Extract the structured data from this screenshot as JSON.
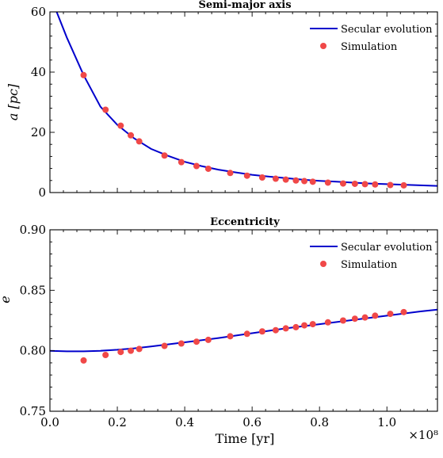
{
  "chart_data": [
    {
      "type": "line",
      "title": "Semi-major axis",
      "xlabel": "",
      "ylabel": "a [pc]",
      "xlim": [
        0,
        115000000.0
      ],
      "ylim": [
        0,
        60
      ],
      "yticks": [
        0,
        20,
        40,
        60
      ],
      "ytick_labels": [
        "0",
        "20",
        "40",
        "60"
      ],
      "xticks": [
        0,
        20000000.0,
        40000000.0,
        60000000.0,
        80000000.0,
        100000000.0
      ],
      "grid": false,
      "legend_position": "top-right",
      "colors": {
        "line": "#0000cc",
        "points": "#f04848"
      },
      "series": [
        {
          "name": "Secular evolution",
          "kind": "line",
          "x": [
            2000000.0,
            5000000.0,
            10000000.0,
            15000000.0,
            20000000.0,
            25000000.0,
            30000000.0,
            35000000.0,
            40000000.0,
            45000000.0,
            50000000.0,
            55000000.0,
            60000000.0,
            65000000.0,
            70000000.0,
            75000000.0,
            80000000.0,
            85000000.0,
            90000000.0,
            95000000.0,
            100000000.0,
            105000000.0,
            110000000.0,
            115000000.0
          ],
          "y": [
            60.0,
            51.5,
            39.0,
            28.5,
            22.5,
            18.0,
            14.5,
            12.2,
            10.2,
            8.8,
            7.6,
            6.7,
            5.9,
            5.3,
            4.8,
            4.3,
            3.9,
            3.6,
            3.3,
            3.0,
            2.8,
            2.6,
            2.4,
            2.2
          ]
        },
        {
          "name": "Simulation",
          "kind": "scatter",
          "x": [
            10000000.0,
            16500000.0,
            21000000.0,
            24000000.0,
            26500000.0,
            34000000.0,
            39000000.0,
            43500000.0,
            47000000.0,
            53500000.0,
            58500000.0,
            63000000.0,
            67000000.0,
            70000000.0,
            73000000.0,
            75500000.0,
            78000000.0,
            82500000.0,
            87000000.0,
            90500000.0,
            93500000.0,
            96500000.0,
            101000000.0,
            105000000.0
          ],
          "y": [
            39.0,
            27.5,
            22.2,
            19.0,
            17.0,
            12.3,
            10.1,
            8.8,
            7.9,
            6.5,
            5.6,
            5.0,
            4.6,
            4.3,
            4.0,
            3.8,
            3.6,
            3.3,
            3.0,
            2.9,
            2.8,
            2.7,
            2.5,
            2.4
          ]
        }
      ]
    },
    {
      "type": "line",
      "title": "Eccentricity",
      "xlabel": "Time [yr]",
      "ylabel": "e",
      "xlim": [
        0,
        115000000.0
      ],
      "ylim": [
        0.75,
        0.9
      ],
      "yticks": [
        0.75,
        0.8,
        0.85,
        0.9
      ],
      "ytick_labels": [
        "0.75",
        "0.80",
        "0.85",
        "0.90"
      ],
      "xticks": [
        0,
        20000000.0,
        40000000.0,
        60000000.0,
        80000000.0,
        100000000.0
      ],
      "xtick_labels": [
        "0.0",
        "0.2",
        "0.4",
        "0.6",
        "0.8",
        "1.0"
      ],
      "x_multiplier": "×10⁸",
      "grid": false,
      "legend_position": "top-right",
      "colors": {
        "line": "#0000cc",
        "points": "#f04848"
      },
      "series": [
        {
          "name": "Secular evolution",
          "kind": "line",
          "x": [
            0,
            5000000.0,
            10000000.0,
            15000000.0,
            20000000.0,
            25000000.0,
            30000000.0,
            40000000.0,
            50000000.0,
            60000000.0,
            70000000.0,
            80000000.0,
            90000000.0,
            100000000.0,
            110000000.0,
            115000000.0
          ],
          "y": [
            0.8,
            0.7995,
            0.7995,
            0.8,
            0.8008,
            0.802,
            0.8035,
            0.807,
            0.8105,
            0.8145,
            0.8185,
            0.822,
            0.8255,
            0.829,
            0.8325,
            0.834
          ]
        },
        {
          "name": "Simulation",
          "kind": "scatter",
          "x": [
            10000000.0,
            16500000.0,
            21000000.0,
            24000000.0,
            26500000.0,
            34000000.0,
            39000000.0,
            43500000.0,
            47000000.0,
            53500000.0,
            58500000.0,
            63000000.0,
            67000000.0,
            70000000.0,
            73000000.0,
            75500000.0,
            78000000.0,
            82500000.0,
            87000000.0,
            90500000.0,
            93500000.0,
            96500000.0,
            101000000.0,
            105000000.0
          ],
          "y": [
            0.792,
            0.7965,
            0.799,
            0.8,
            0.8015,
            0.804,
            0.806,
            0.8075,
            0.809,
            0.812,
            0.814,
            0.816,
            0.817,
            0.8185,
            0.8195,
            0.821,
            0.822,
            0.8235,
            0.825,
            0.8265,
            0.8275,
            0.829,
            0.8305,
            0.832
          ]
        }
      ]
    }
  ]
}
